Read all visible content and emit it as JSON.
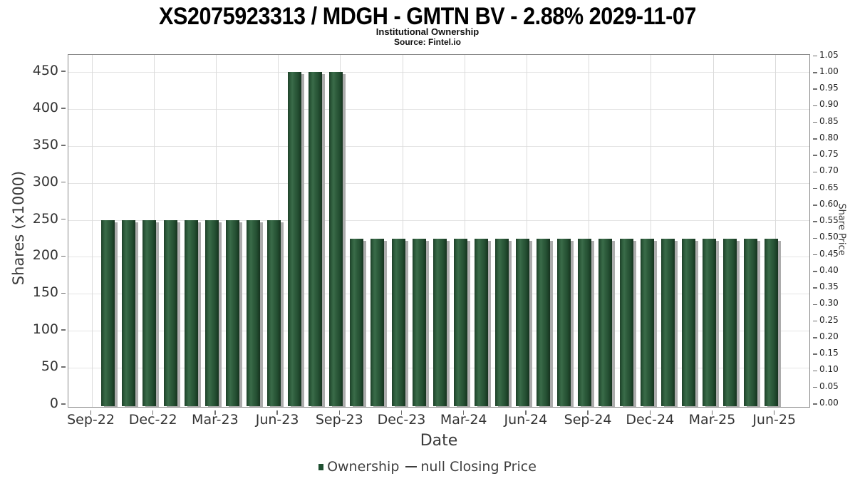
{
  "chart_data": {
    "type": "bar",
    "title": "XS2075923313 / MDGH - GMTN BV - 2.88% 2029-11-07",
    "subtitle": "Institutional Ownership",
    "source": "Source: Fintel.io",
    "xlabel": "Date",
    "ylabel_left": "Shares (x1000)",
    "ylabel_right": "Share Price",
    "categories": [
      "Oct-22",
      "Nov-22",
      "Dec-22",
      "Jan-23",
      "Feb-23",
      "Mar-23",
      "Apr-23",
      "May-23",
      "Jun-23",
      "Jul-23",
      "Aug-23",
      "Sep-23",
      "Oct-23",
      "Nov-23",
      "Dec-23",
      "Jan-24",
      "Feb-24",
      "Mar-24",
      "Apr-24",
      "May-24",
      "Jun-24",
      "Jul-24",
      "Aug-24",
      "Sep-24",
      "Oct-24",
      "Nov-24",
      "Dec-24",
      "Jan-25",
      "Feb-25",
      "Mar-25",
      "Apr-25",
      "May-25",
      "Jun-25"
    ],
    "series": [
      {
        "name": "Ownership",
        "type": "bar",
        "color": "#1e4f30",
        "values": [
          250,
          250,
          250,
          250,
          250,
          250,
          250,
          250,
          250,
          450,
          450,
          450,
          225,
          225,
          225,
          225,
          225,
          225,
          225,
          225,
          225,
          225,
          225,
          225,
          225,
          225,
          225,
          225,
          225,
          225,
          225,
          225,
          225
        ]
      },
      {
        "name": "null Closing Price",
        "type": "line",
        "color": "#3c3c3c",
        "values": []
      }
    ],
    "xticks": [
      "Sep-22",
      "Dec-22",
      "Mar-23",
      "Jun-23",
      "Sep-23",
      "Dec-23",
      "Mar-24",
      "Jun-24",
      "Sep-24",
      "Dec-24",
      "Mar-25",
      "Jun-25"
    ],
    "yticks_left": [
      0,
      50,
      100,
      150,
      200,
      250,
      300,
      350,
      400,
      450
    ],
    "yticks_right": [
      "0.00",
      "0.05",
      "0.10",
      "0.15",
      "0.20",
      "0.25",
      "0.30",
      "0.35",
      "0.40",
      "0.45",
      "0.50",
      "0.55",
      "0.60",
      "0.65",
      "0.70",
      "0.75",
      "0.80",
      "0.85",
      "0.90",
      "0.95",
      "1.00",
      "1.05"
    ],
    "ylim_left": [
      0,
      473
    ],
    "ylim_right": [
      0,
      1.103
    ],
    "grid": true,
    "legend_position": "bottom"
  },
  "colors": {
    "bar_dark": "#16331f",
    "bar_light": "#3a6c49",
    "bar_shadow": "#acacac",
    "grid": "#e4e4e4",
    "frame": "#8a8a8a",
    "text": "#3a3a3a"
  }
}
